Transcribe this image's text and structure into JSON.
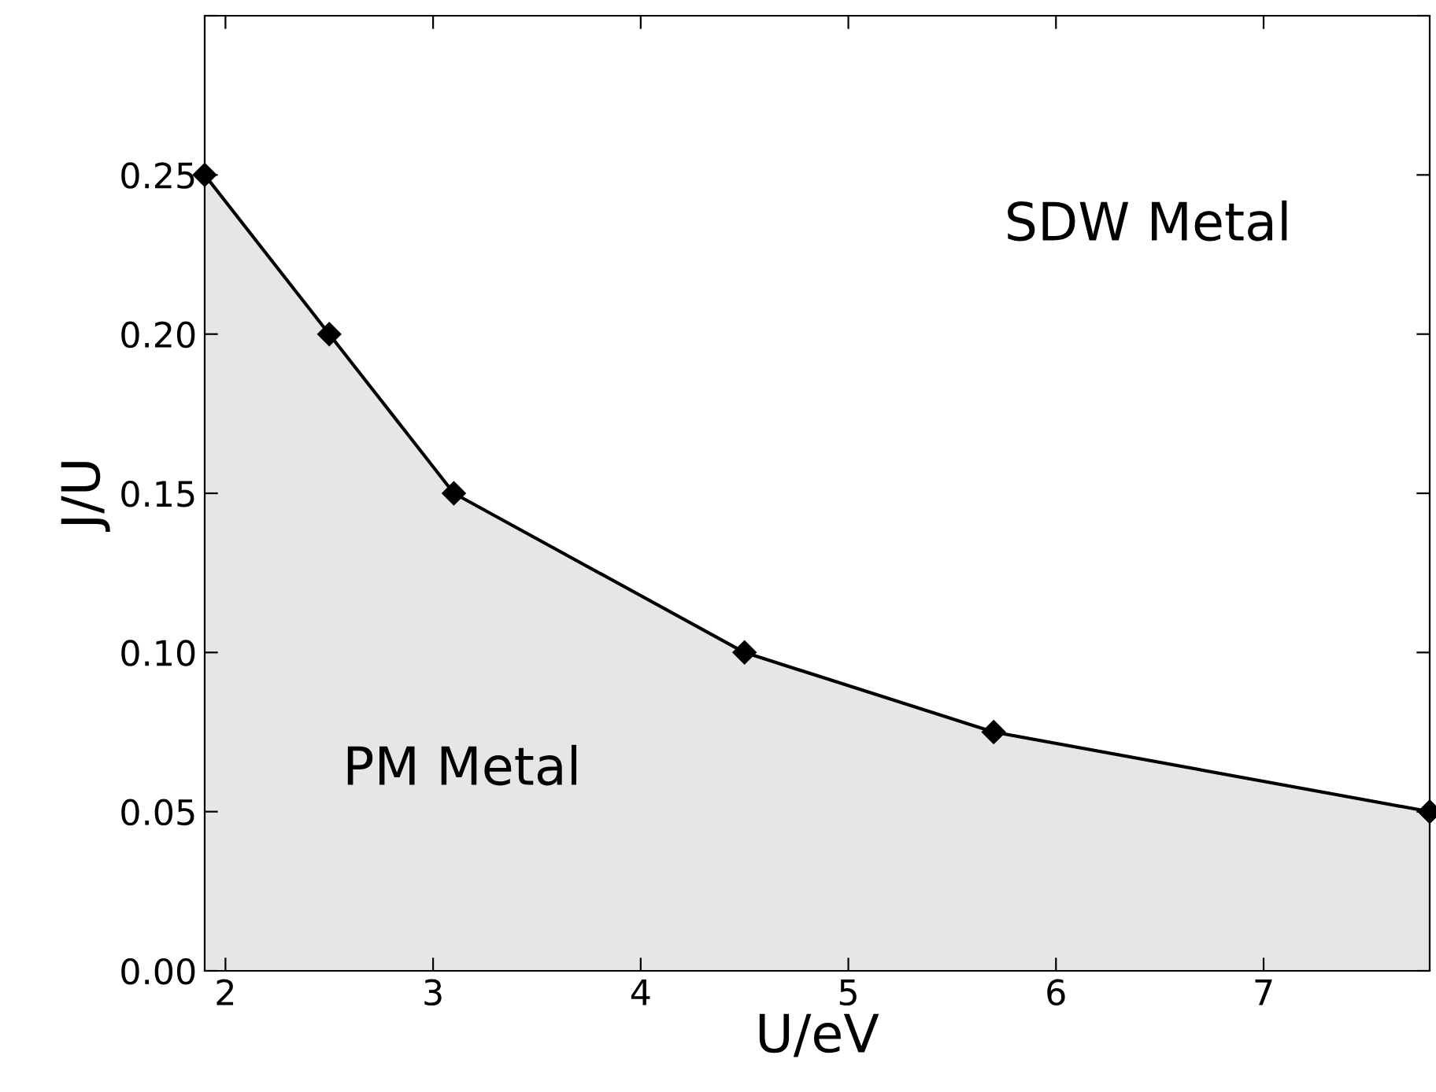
{
  "chart_data": {
    "type": "area",
    "xlabel": "U/eV",
    "ylabel": "J/U",
    "x": [
      1.9,
      2.5,
      3.1,
      4.5,
      5.7,
      7.8
    ],
    "series": [
      {
        "color": "#e6e6e6",
        "values": [
          0.25,
          0.2,
          0.15,
          0.1,
          0.075,
          0.05
        ]
      }
    ],
    "marker": "diamond",
    "line_style": "solid",
    "grid": false,
    "legend": false,
    "xlim": [
      1.9,
      7.8
    ],
    "xticks": [
      2,
      3,
      4,
      5,
      6,
      7
    ],
    "ylim": [
      0,
      0.3
    ],
    "yticks": [
      {
        "value": 0,
        "label": "0.00"
      },
      {
        "value": 0.05,
        "label": "0.05"
      },
      {
        "value": 0.1,
        "label": "0.10"
      },
      {
        "value": 0.15,
        "label": "0.15"
      },
      {
        "value": 0.2,
        "label": "0.20"
      },
      {
        "value": 0.25,
        "label": "0.25"
      },
      {
        "value": 0.3,
        "label": null
      }
    ],
    "annotations": [
      "SDW Metal",
      "PM Metal"
    ]
  }
}
